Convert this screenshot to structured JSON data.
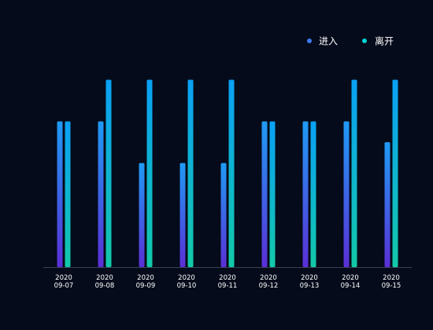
{
  "chart_data": {
    "type": "bar",
    "categories": [
      [
        "2020",
        "09-07"
      ],
      [
        "2020",
        "09-08"
      ],
      [
        "2020",
        "09-09"
      ],
      [
        "2020",
        "09-10"
      ],
      [
        "2020",
        "09-11"
      ],
      [
        "2020",
        "09-12"
      ],
      [
        "2020",
        "09-13"
      ],
      [
        "2020",
        "09-14"
      ],
      [
        "2020",
        "09-15"
      ]
    ],
    "series": [
      {
        "name": "进入",
        "values": [
          7,
          7,
          5,
          5,
          5,
          7,
          7,
          7,
          6
        ],
        "legend_color": "#3d7cf0",
        "gradient": [
          "#1f9bf5",
          "#5a2fd6"
        ]
      },
      {
        "name": "离开",
        "values": [
          7,
          9,
          9,
          9,
          9,
          7,
          7,
          9,
          9
        ],
        "legend_color": "#00d4d4",
        "gradient": [
          "#0aa0f5",
          "#12c9a8"
        ]
      }
    ],
    "ylim": [
      0,
      10
    ],
    "grid": false,
    "legend_position": "top-right",
    "colors": {
      "background": "#050b1a",
      "axis": "#3a4256",
      "text": "#ffffff"
    }
  }
}
